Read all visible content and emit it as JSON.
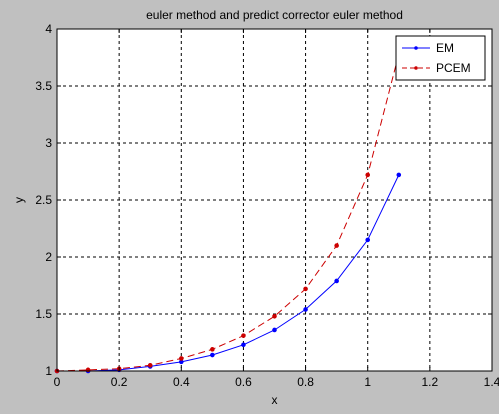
{
  "chart_data": {
    "type": "line",
    "title": "euler method and predict corrector euler method",
    "xlabel": "x",
    "ylabel": "y",
    "xlim": [
      0,
      1.4
    ],
    "ylim": [
      1,
      4
    ],
    "x_ticks": [
      "0",
      "0.2",
      "0.4",
      "0.6",
      "0.8",
      "1",
      "1.2",
      "1.4"
    ],
    "y_ticks": [
      "1",
      "1.5",
      "2",
      "2.5",
      "3",
      "3.5",
      "4"
    ],
    "grid": true,
    "legend_position": "top-right",
    "series": [
      {
        "name": "EM",
        "color": "#0000ff",
        "line_style": "solid",
        "marker": "dot",
        "x": [
          0,
          0.1,
          0.2,
          0.3,
          0.4,
          0.5,
          0.6,
          0.7,
          0.8,
          0.9,
          1.0,
          1.1
        ],
        "y": [
          1.0,
          1.0,
          1.01,
          1.04,
          1.08,
          1.14,
          1.23,
          1.36,
          1.54,
          1.79,
          2.15,
          2.72
        ]
      },
      {
        "name": "PCEM",
        "color": "#cc0000",
        "line_style": "dashed",
        "marker": "dot",
        "x": [
          0,
          0.1,
          0.2,
          0.3,
          0.4,
          0.5,
          0.6,
          0.7,
          0.8,
          0.9,
          1.0,
          1.1
        ],
        "y": [
          1.0,
          1.01,
          1.02,
          1.05,
          1.11,
          1.19,
          1.31,
          1.48,
          1.72,
          2.1,
          2.72,
          3.78
        ]
      }
    ]
  }
}
